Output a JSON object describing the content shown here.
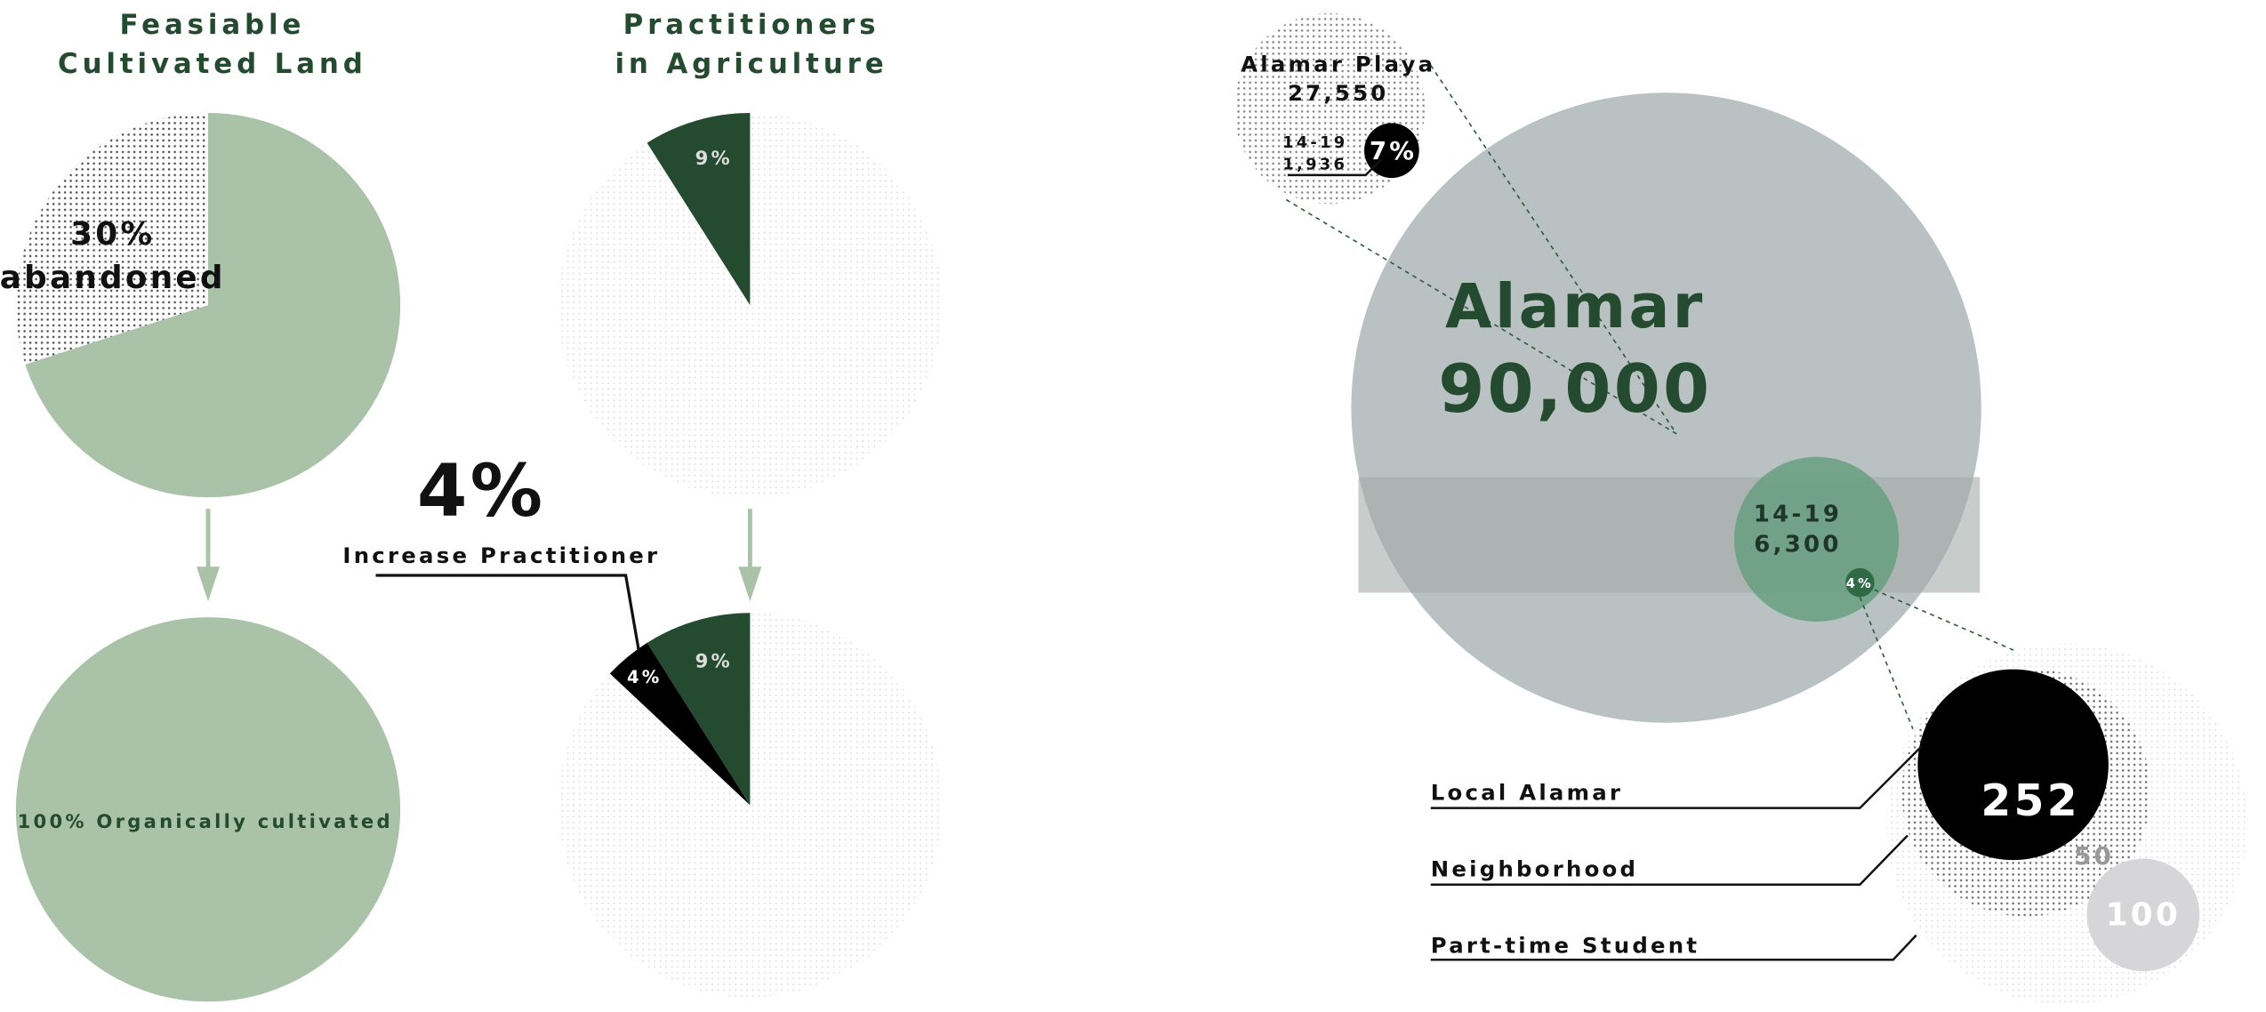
{
  "land": {
    "title": [
      "Feasiable",
      "Cultivated Land"
    ],
    "before": {
      "value": 30,
      "label": [
        "30%",
        "abandoned"
      ]
    },
    "after": {
      "value": 100,
      "label": "100% Organically cultivated"
    }
  },
  "practitioners": {
    "title": [
      "Practitioners",
      "in Agriculture"
    ],
    "before": {
      "value": 9,
      "label": "9%"
    },
    "after": [
      {
        "value": 9,
        "label": "9%"
      },
      {
        "value": 4,
        "label": "4%"
      }
    ],
    "increase": {
      "label": "4%",
      "caption": "Increase Practitioner"
    }
  },
  "alamar": {
    "name": "Alamar",
    "population": "90,000",
    "playa": {
      "name": "Alamar Playa",
      "population": "27,550",
      "age": "14-19",
      "count": "1,936",
      "share": "7%"
    },
    "youth": {
      "age": "14-19",
      "count": "6,300",
      "share": "4%"
    }
  },
  "participants": [
    {
      "count": "252",
      "label": "Local Alamar"
    },
    {
      "count": "50",
      "label": "Neighborhood"
    },
    {
      "count": "100",
      "label": "Part-time Student"
    }
  ]
}
